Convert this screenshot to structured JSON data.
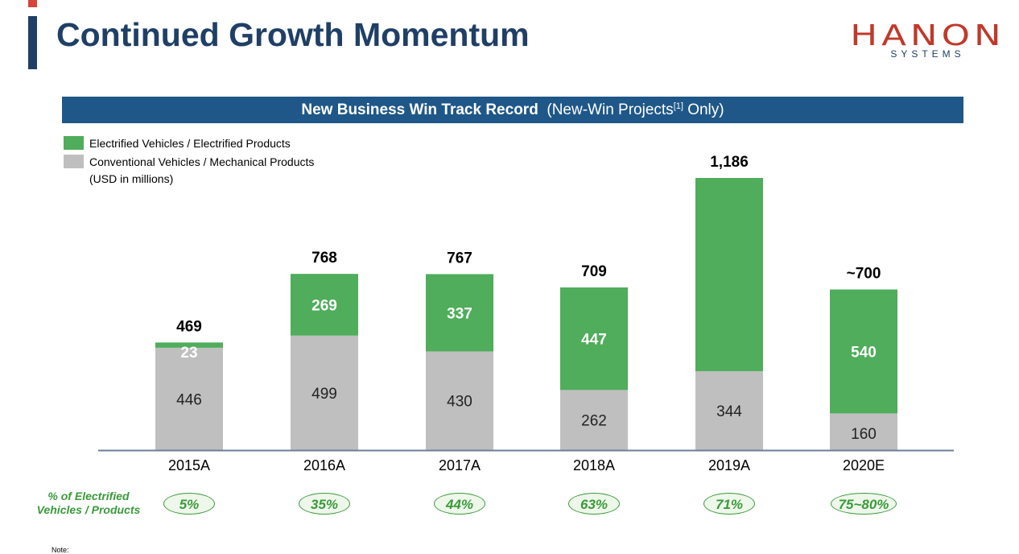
{
  "header": {
    "title": "Continued Growth Momentum",
    "logo_word": "HANON",
    "logo_sub": "SYSTEMS"
  },
  "banner": {
    "main": "New Business Win Track Record",
    "sub_prefix": "(New-Win Projects",
    "sup": "[1]",
    "sub_suffix": " Only)"
  },
  "legend": {
    "electrified": "Electrified Vehicles / Electrified Products",
    "conventional": "Conventional Vehicles / Mechanical Products",
    "units": "(USD in millions)"
  },
  "percent_row": {
    "label_line1": "% of Electrified",
    "label_line2": "Vehicles / Products",
    "values": [
      "5%",
      "35%",
      "44%",
      "63%",
      "71%",
      "75~80%"
    ]
  },
  "note": "Note:",
  "colors": {
    "electrified": "#4fad5b",
    "conventional": "#bfbfbf",
    "navy": "#1f3f66",
    "banner": "#1f5788",
    "accent_red": "#d9443a"
  },
  "chart_data": {
    "type": "bar",
    "stacked": true,
    "categories": [
      "2015A",
      "2016A",
      "2017A",
      "2018A",
      "2019A",
      "2020E"
    ],
    "series": [
      {
        "name": "Conventional Vehicles / Mechanical Products",
        "values": [
          446,
          499,
          430,
          262,
          344,
          160
        ]
      },
      {
        "name": "Electrified Vehicles / Electrified Products",
        "values": [
          23,
          269,
          337,
          447,
          842,
          540
        ]
      }
    ],
    "totals": [
      469,
      768,
      767,
      709,
      1186,
      700
    ],
    "total_labels": [
      "469",
      "768",
      "767",
      "709",
      "1,186",
      "~700"
    ],
    "ylim": [
      0,
      1186
    ]
  }
}
